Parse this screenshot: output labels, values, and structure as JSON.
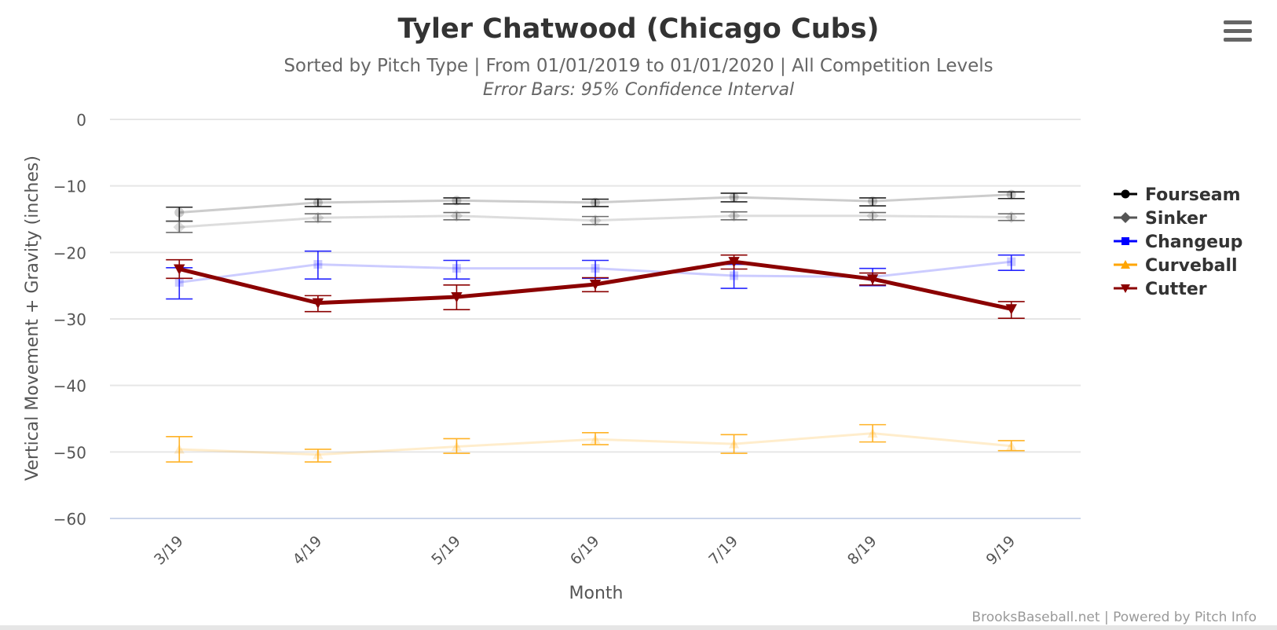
{
  "menu": {
    "icon": "hamburger-menu-icon"
  },
  "chart_data": {
    "type": "line",
    "title": "Tyler Chatwood (Chicago Cubs)",
    "subtitle": "Sorted by Pitch Type | From 01/01/2019 to 01/01/2020 | All Competition Levels",
    "subtitle2": "Error Bars: 95% Confidence Interval",
    "xlabel": "Month",
    "ylabel": "Vertical Movement + Gravity (inches)",
    "ylim": [
      -60,
      0
    ],
    "yticks": [
      0,
      -10,
      -20,
      -30,
      -40,
      -50,
      -60
    ],
    "ytick_labels": [
      "0",
      "−10",
      "−20",
      "−30",
      "−40",
      "−50",
      "−60"
    ],
    "categories": [
      "3/19",
      "4/19",
      "5/19",
      "6/19",
      "7/19",
      "8/19",
      "9/19"
    ],
    "grid": true,
    "legend_position": "right",
    "credits": "BrooksBaseball.net | Powered by Pitch Info",
    "series": [
      {
        "name": "Fourseam",
        "color": "#000000",
        "marker": "circle",
        "faded": true,
        "values": [
          -14.0,
          -12.5,
          -12.2,
          -12.5,
          -11.7,
          -12.3,
          -11.3
        ],
        "err_low": [
          -15.3,
          -13.1,
          -12.7,
          -13.1,
          -12.4,
          -13.0,
          -11.9
        ],
        "err_high": [
          -13.2,
          -12.0,
          -11.8,
          -12.0,
          -11.1,
          -11.8,
          -10.9
        ]
      },
      {
        "name": "Sinker",
        "color": "#555555",
        "marker": "diamond",
        "faded": true,
        "values": [
          -16.2,
          -14.8,
          -14.5,
          -15.2,
          -14.5,
          -14.5,
          -14.7
        ],
        "err_low": [
          -17.0,
          -15.4,
          -15.1,
          -15.8,
          -15.1,
          -15.1,
          -15.2
        ],
        "err_high": [
          -15.3,
          -14.2,
          -14.0,
          -14.6,
          -13.9,
          -14.0,
          -14.2
        ]
      },
      {
        "name": "Changeup",
        "color": "#0000ff",
        "marker": "square",
        "faded": true,
        "values": [
          -24.5,
          -21.8,
          -22.4,
          -22.4,
          -23.5,
          -23.7,
          -21.4
        ],
        "err_low": [
          -27.0,
          -24.0,
          -24.0,
          -23.9,
          -25.4,
          -25.0,
          -22.7
        ],
        "err_high": [
          -22.3,
          -19.8,
          -21.2,
          -21.2,
          -21.8,
          -22.4,
          -20.4
        ]
      },
      {
        "name": "Curveball",
        "color": "#ffa500",
        "marker": "triangle",
        "faded": true,
        "values": [
          -49.6,
          -50.4,
          -49.2,
          -48.1,
          -48.8,
          -47.2,
          -49.1
        ],
        "err_low": [
          -51.5,
          -51.5,
          -50.2,
          -48.9,
          -50.2,
          -48.5,
          -49.8
        ],
        "err_high": [
          -47.7,
          -49.6,
          -48.0,
          -47.1,
          -47.4,
          -45.9,
          -48.3
        ]
      },
      {
        "name": "Cutter",
        "color": "#8b0000",
        "marker": "triangle-down",
        "faded": false,
        "values": [
          -22.5,
          -27.6,
          -26.7,
          -24.8,
          -21.4,
          -24.0,
          -28.5
        ],
        "err_low": [
          -23.9,
          -28.9,
          -28.6,
          -25.9,
          -22.5,
          -24.9,
          -29.9
        ],
        "err_high": [
          -21.1,
          -26.5,
          -24.9,
          -23.8,
          -20.4,
          -23.1,
          -27.4
        ]
      }
    ]
  }
}
